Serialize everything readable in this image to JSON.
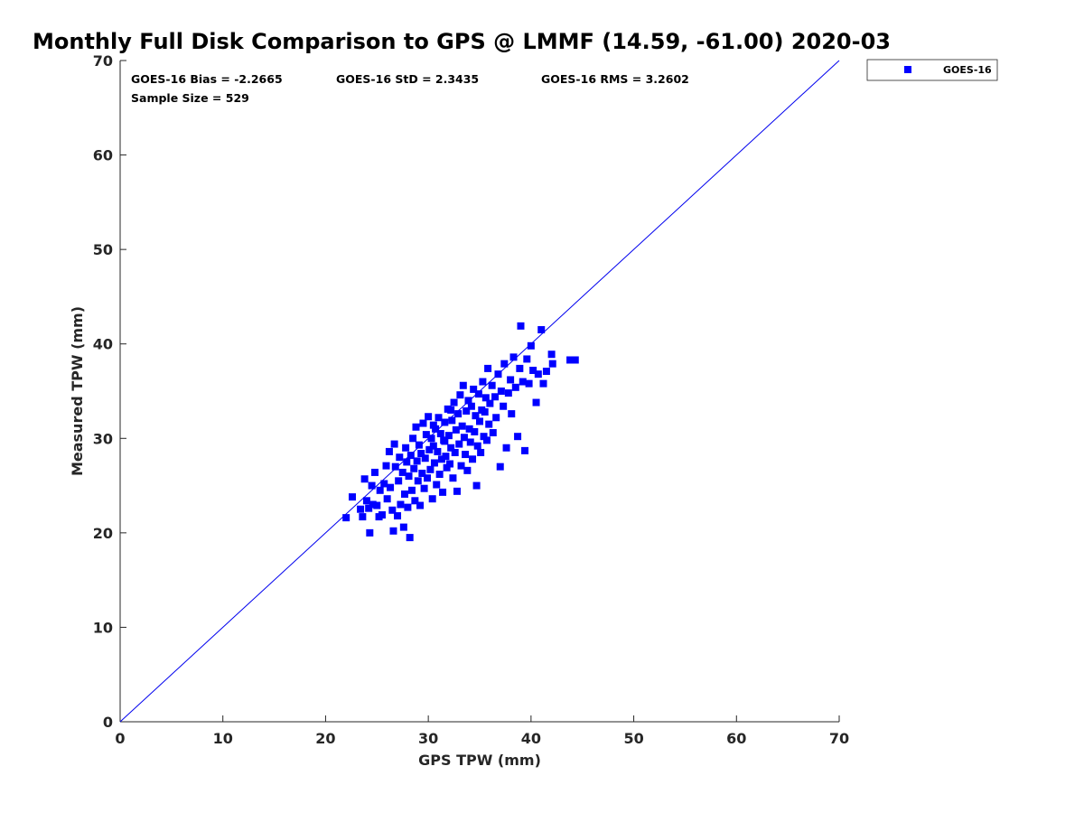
{
  "chart_data": {
    "type": "scatter",
    "title": "Monthly Full Disk Comparison to GPS @ LMMF (14.59, -61.00) 2020-03",
    "xlabel": "GPS TPW (mm)",
    "ylabel": "Measured TPW (mm)",
    "xlim": [
      0,
      70
    ],
    "ylim": [
      0,
      70
    ],
    "xticks": [
      0,
      10,
      20,
      30,
      40,
      50,
      60,
      70
    ],
    "yticks": [
      0,
      10,
      20,
      30,
      40,
      50,
      60,
      70
    ],
    "grid": false,
    "legend_position": "top-right-outside",
    "stats": {
      "bias": "GOES-16 Bias = -2.2665",
      "std": "GOES-16 StD = 2.3435",
      "rms": "GOES-16 RMS = 3.2602",
      "sample_size": "Sample Size = 529"
    },
    "reference_line": {
      "label": "1:1",
      "from": [
        0,
        0
      ],
      "to": [
        70,
        70
      ],
      "color": "#0000ee"
    },
    "series": [
      {
        "name": "GOES-16",
        "color": "#0000ff",
        "marker": "square",
        "points": [
          [
            22.0,
            21.6
          ],
          [
            22.6,
            23.8
          ],
          [
            23.4,
            22.5
          ],
          [
            23.6,
            21.7
          ],
          [
            23.8,
            25.7
          ],
          [
            24.0,
            23.4
          ],
          [
            24.2,
            22.6
          ],
          [
            24.3,
            20.0
          ],
          [
            24.5,
            25.0
          ],
          [
            24.6,
            23.0
          ],
          [
            24.8,
            26.4
          ],
          [
            25.0,
            22.9
          ],
          [
            25.2,
            21.7
          ],
          [
            25.3,
            24.5
          ],
          [
            25.5,
            21.9
          ],
          [
            25.7,
            25.2
          ],
          [
            25.9,
            27.1
          ],
          [
            26.0,
            23.6
          ],
          [
            26.2,
            28.6
          ],
          [
            26.3,
            24.8
          ],
          [
            26.5,
            22.4
          ],
          [
            26.6,
            20.2
          ],
          [
            26.7,
            29.4
          ],
          [
            26.8,
            27.0
          ],
          [
            27.0,
            21.8
          ],
          [
            27.1,
            25.5
          ],
          [
            27.2,
            28.0
          ],
          [
            27.3,
            23.0
          ],
          [
            27.5,
            26.4
          ],
          [
            27.6,
            20.6
          ],
          [
            27.7,
            24.1
          ],
          [
            27.8,
            29.0
          ],
          [
            27.9,
            27.5
          ],
          [
            28.0,
            22.7
          ],
          [
            28.1,
            26.0
          ],
          [
            28.2,
            19.5
          ],
          [
            28.3,
            28.2
          ],
          [
            28.4,
            24.5
          ],
          [
            28.5,
            30.0
          ],
          [
            28.6,
            26.8
          ],
          [
            28.7,
            23.4
          ],
          [
            28.8,
            31.2
          ],
          [
            28.9,
            27.6
          ],
          [
            29.0,
            25.5
          ],
          [
            29.1,
            29.3
          ],
          [
            29.2,
            22.9
          ],
          [
            29.3,
            28.4
          ],
          [
            29.4,
            26.3
          ],
          [
            29.5,
            31.6
          ],
          [
            29.6,
            24.7
          ],
          [
            29.7,
            27.9
          ],
          [
            29.8,
            30.4
          ],
          [
            29.9,
            25.8
          ],
          [
            30.0,
            32.3
          ],
          [
            30.1,
            28.8
          ],
          [
            30.2,
            26.7
          ],
          [
            30.3,
            30.0
          ],
          [
            30.4,
            23.6
          ],
          [
            30.5,
            29.2
          ],
          [
            30.6,
            27.4
          ],
          [
            30.7,
            31.0
          ],
          [
            30.8,
            25.1
          ],
          [
            30.9,
            28.6
          ],
          [
            31.0,
            32.2
          ],
          [
            31.1,
            26.2
          ],
          [
            31.2,
            30.5
          ],
          [
            31.3,
            27.8
          ],
          [
            31.4,
            24.3
          ],
          [
            31.5,
            29.8
          ],
          [
            31.6,
            31.7
          ],
          [
            31.7,
            28.1
          ],
          [
            31.8,
            26.9
          ],
          [
            31.9,
            33.1
          ],
          [
            32.0,
            30.3
          ],
          [
            32.1,
            27.3
          ],
          [
            32.2,
            29.0
          ],
          [
            32.3,
            31.9
          ],
          [
            32.4,
            25.8
          ],
          [
            32.5,
            33.8
          ],
          [
            32.6,
            28.5
          ],
          [
            32.7,
            30.9
          ],
          [
            32.8,
            24.4
          ],
          [
            32.9,
            32.6
          ],
          [
            33.0,
            29.4
          ],
          [
            33.1,
            34.6
          ],
          [
            33.2,
            27.1
          ],
          [
            33.3,
            31.3
          ],
          [
            33.4,
            35.6
          ],
          [
            33.5,
            30.1
          ],
          [
            33.6,
            28.3
          ],
          [
            33.7,
            32.9
          ],
          [
            33.8,
            26.6
          ],
          [
            33.9,
            34.0
          ],
          [
            34.0,
            31.0
          ],
          [
            34.1,
            29.6
          ],
          [
            34.2,
            33.4
          ],
          [
            34.3,
            27.8
          ],
          [
            34.4,
            35.2
          ],
          [
            34.5,
            30.7
          ],
          [
            34.6,
            32.4
          ],
          [
            34.7,
            25.0
          ],
          [
            34.8,
            29.2
          ],
          [
            34.9,
            34.7
          ],
          [
            35.0,
            31.8
          ],
          [
            35.1,
            28.5
          ],
          [
            35.2,
            33.0
          ],
          [
            35.3,
            36.0
          ],
          [
            35.4,
            30.2
          ],
          [
            35.5,
            32.8
          ],
          [
            35.6,
            34.3
          ],
          [
            35.7,
            29.8
          ],
          [
            35.8,
            37.4
          ],
          [
            35.9,
            31.5
          ],
          [
            36.0,
            33.7
          ],
          [
            36.2,
            35.6
          ],
          [
            36.3,
            30.6
          ],
          [
            36.5,
            34.4
          ],
          [
            36.6,
            32.2
          ],
          [
            36.8,
            36.8
          ],
          [
            37.0,
            27.0
          ],
          [
            37.1,
            35.0
          ],
          [
            37.3,
            33.4
          ],
          [
            37.4,
            37.9
          ],
          [
            37.6,
            29.0
          ],
          [
            37.8,
            34.8
          ],
          [
            38.0,
            36.2
          ],
          [
            38.1,
            32.6
          ],
          [
            38.3,
            38.6
          ],
          [
            38.5,
            35.4
          ],
          [
            38.7,
            30.2
          ],
          [
            38.9,
            37.4
          ],
          [
            39.0,
            41.9
          ],
          [
            39.2,
            36.0
          ],
          [
            39.4,
            28.7
          ],
          [
            39.6,
            38.4
          ],
          [
            39.8,
            35.8
          ],
          [
            40.0,
            39.8
          ],
          [
            40.2,
            37.2
          ],
          [
            40.5,
            33.8
          ],
          [
            40.7,
            36.8
          ],
          [
            41.0,
            41.5
          ],
          [
            41.2,
            35.8
          ],
          [
            41.5,
            37.1
          ],
          [
            42.0,
            38.9
          ],
          [
            42.1,
            37.9
          ],
          [
            43.8,
            38.3
          ],
          [
            44.3,
            38.3
          ],
          [
            30.5,
            31.4
          ],
          [
            31.6,
            29.7
          ],
          [
            32.2,
            33.0
          ]
        ]
      }
    ]
  }
}
